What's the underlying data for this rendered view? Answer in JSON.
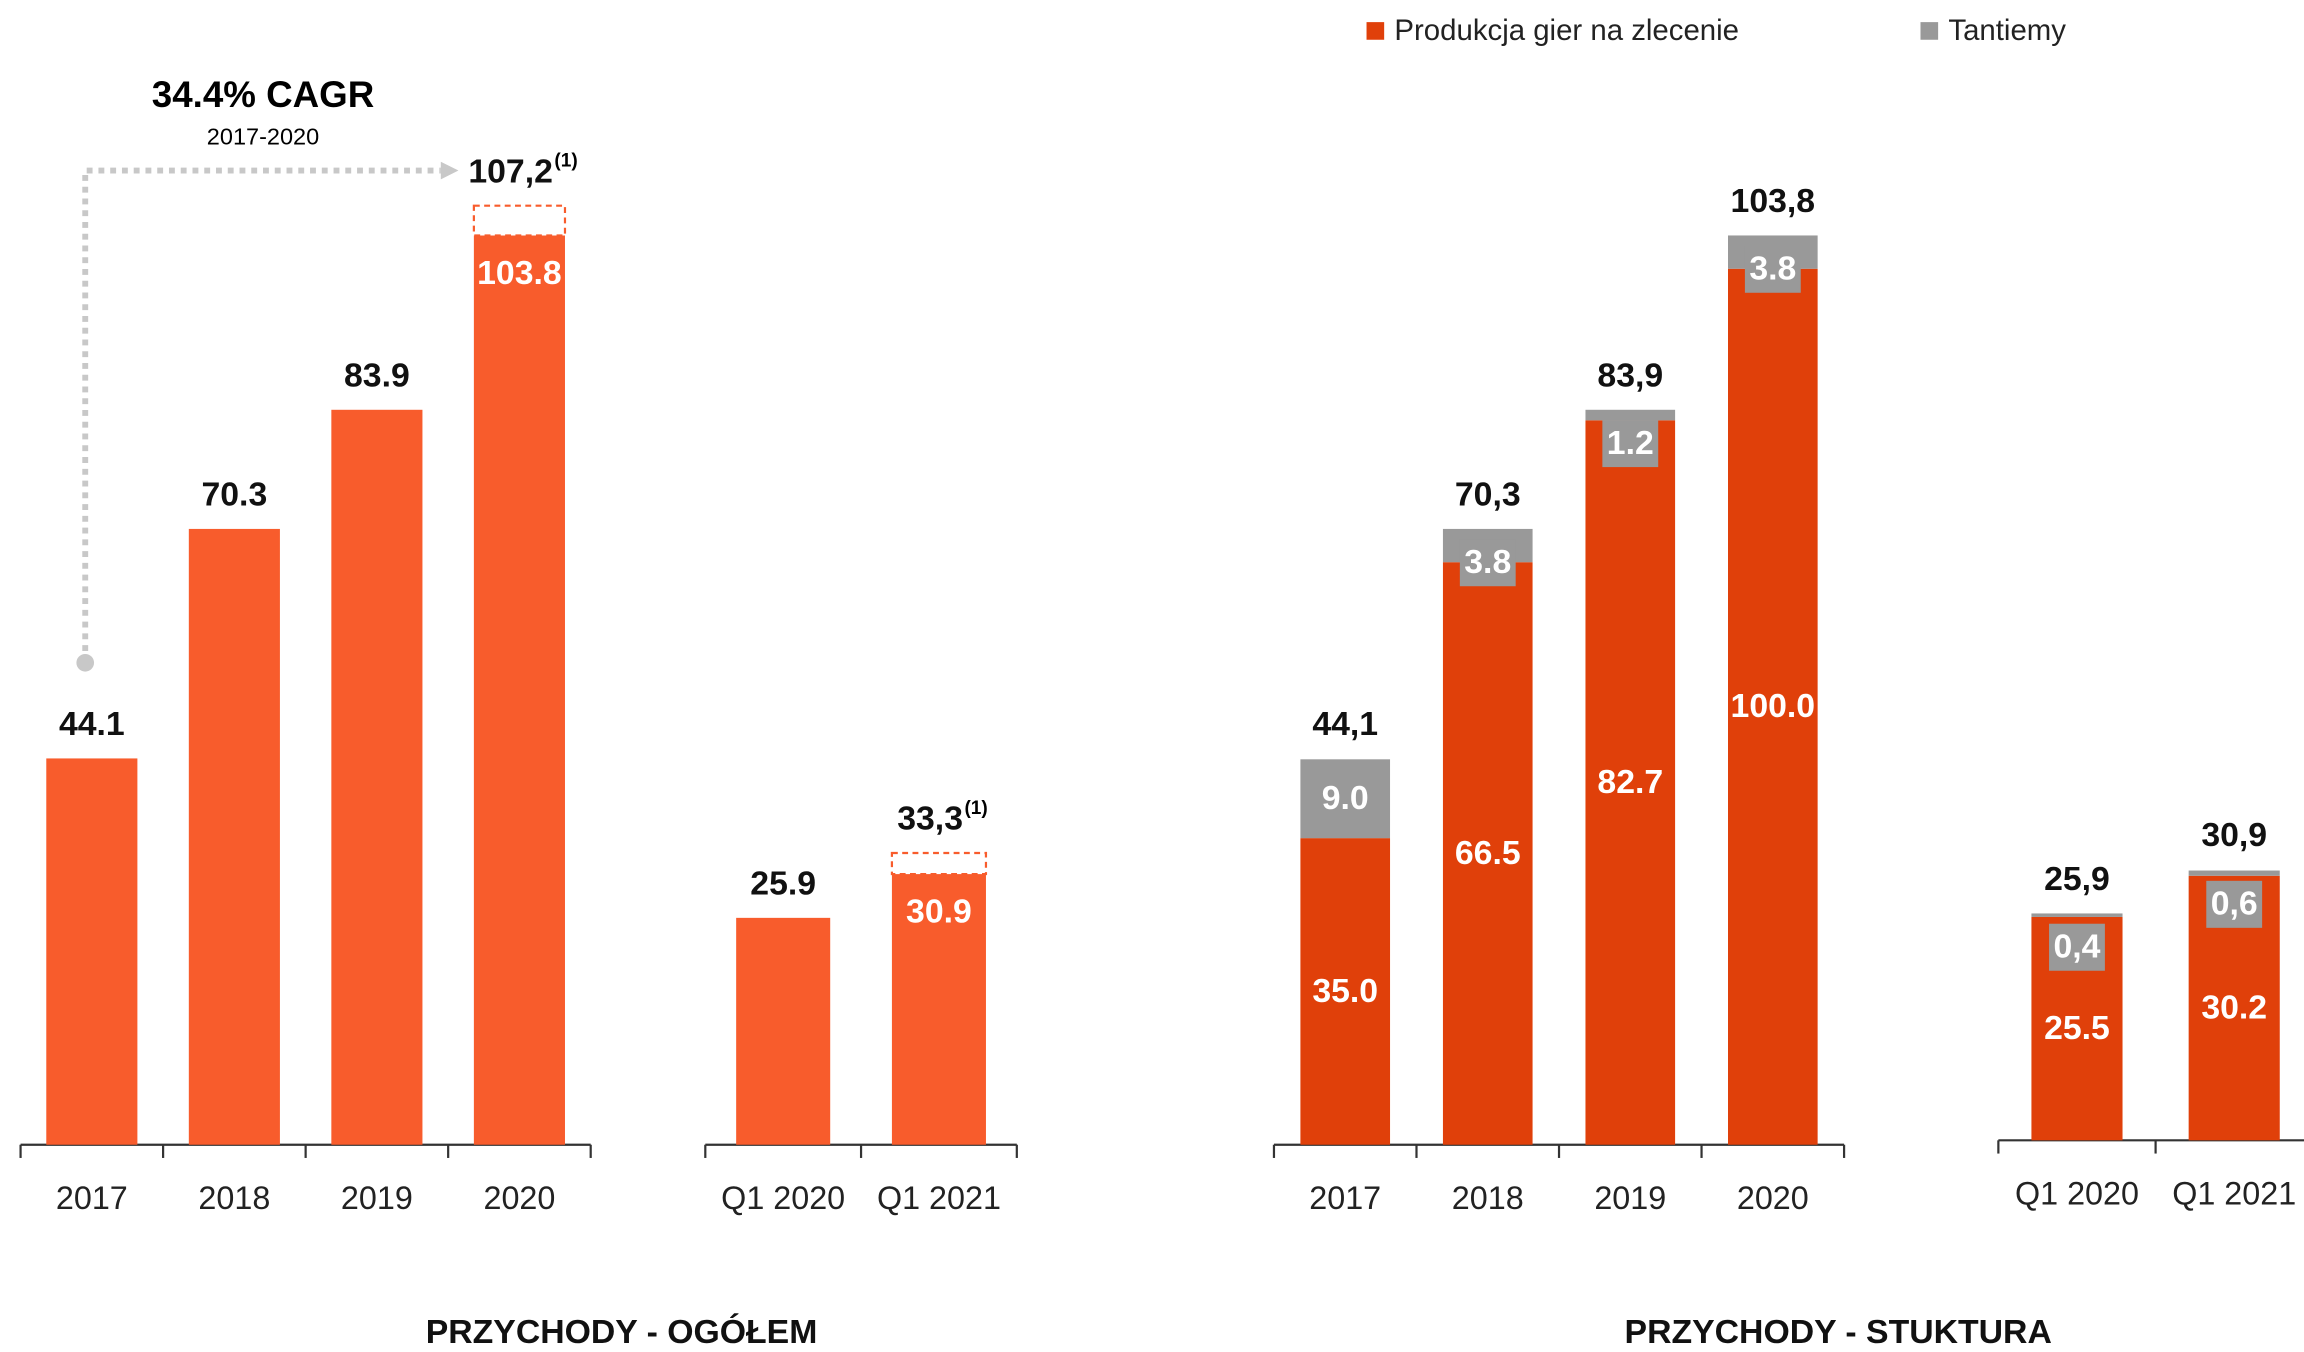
{
  "chart_data": [
    {
      "type": "bar",
      "title": "PRZYCHODY - OGÓŁEM",
      "annotations": [
        "34.4% CAGR",
        "2017-2020"
      ],
      "categories": [
        "2017",
        "2018",
        "2019",
        "2020"
      ],
      "values": [
        44.1,
        70.3,
        83.9,
        103.8
      ],
      "color": "#f85c2c",
      "adjusted": [
        null,
        null,
        null,
        107.2
      ],
      "adjusted_labels": [
        null,
        null,
        null,
        "107,2"
      ],
      "footnote": "(1)",
      "ylim": [
        0,
        130
      ]
    },
    {
      "type": "bar",
      "categories": [
        "Q1 2020",
        "Q1 2021"
      ],
      "values": [
        25.9,
        30.9
      ],
      "color": "#f85c2c",
      "adjusted": [
        null,
        33.3
      ],
      "adjusted_labels": [
        null,
        "33,3"
      ],
      "footnote": "(1)",
      "ylim": [
        0,
        130
      ]
    },
    {
      "type": "stacked_bar",
      "title": "PRZYCHODY - STUKTURA",
      "categories": [
        "2017",
        "2018",
        "2019",
        "2020"
      ],
      "series": [
        {
          "name": "Produkcja gier na zlecenie",
          "color": "#e0400a",
          "values": [
            35.0,
            66.5,
            82.7,
            100.0
          ],
          "value_labels": [
            "35.0",
            "66.5",
            "82.7",
            "100.0"
          ]
        },
        {
          "name": "Tantiemy",
          "color": "#999999",
          "values": [
            9.0,
            3.8,
            1.2,
            3.8
          ],
          "value_labels": [
            "9.0",
            "3.8",
            "1.2",
            "3.8"
          ]
        }
      ],
      "totals": [
        44.1,
        70.3,
        83.9,
        103.8
      ],
      "total_labels": [
        "44,1",
        "70,3",
        "83,9",
        "103,8"
      ],
      "ylim": [
        0,
        130
      ]
    },
    {
      "type": "stacked_bar",
      "categories": [
        "Q1 2020",
        "Q1 2021"
      ],
      "series": [
        {
          "color": "#e0400a",
          "values": [
            25.5,
            30.2
          ],
          "value_labels": [
            "25.5",
            "30.2"
          ]
        },
        {
          "color": "#999999",
          "values": [
            0.4,
            0.6
          ],
          "value_labels": [
            "0,4",
            "0,6"
          ]
        }
      ],
      "totals": [
        25.9,
        30.9
      ],
      "total_labels": [
        "25,9",
        "30,9"
      ],
      "ylim": [
        0,
        130
      ]
    }
  ]
}
